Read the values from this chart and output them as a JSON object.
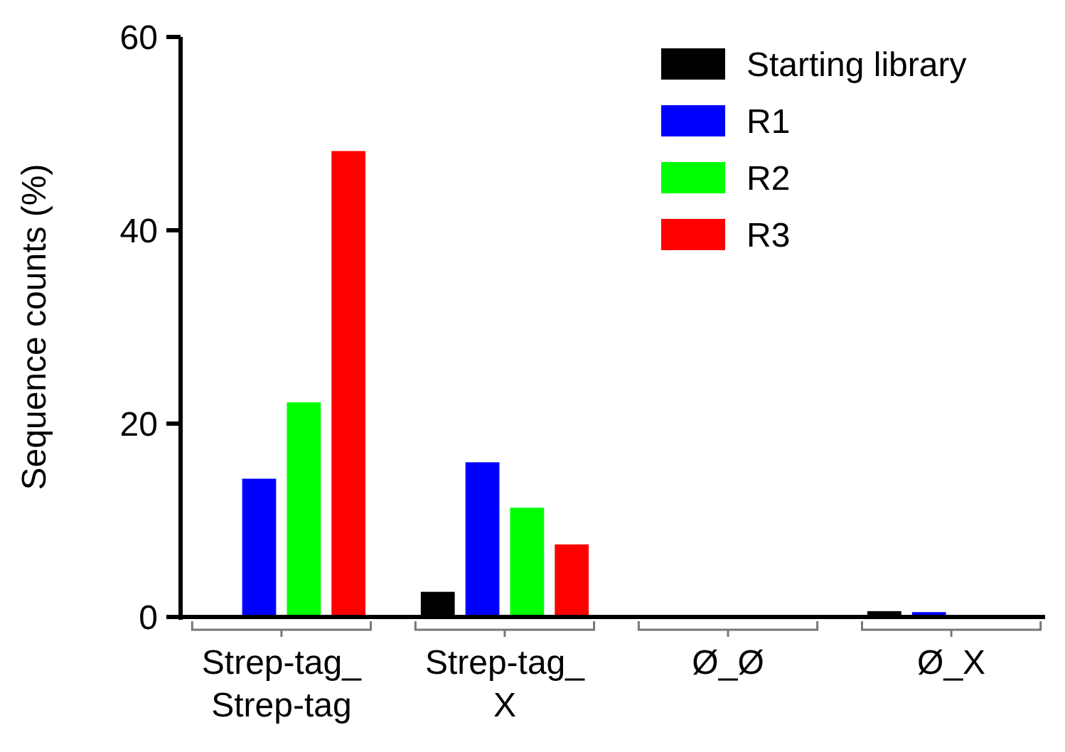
{
  "chart_data": {
    "type": "bar",
    "ylabel": "Sequence counts (%)",
    "categories": [
      "Strep-tag_ Strep-tag",
      "Strep-tag_ X",
      "Ø_Ø",
      "Ø_X"
    ],
    "series": [
      {
        "name": "Starting library",
        "color": "#000000",
        "values": [
          0,
          2.6,
          0,
          0.6
        ]
      },
      {
        "name": "R1",
        "color": "#0000ff",
        "values": [
          14.3,
          16.0,
          0,
          0.5
        ]
      },
      {
        "name": "R2",
        "color": "#00ff00",
        "values": [
          22.2,
          11.3,
          0,
          0
        ]
      },
      {
        "name": "R3",
        "color": "#ff0000",
        "values": [
          48.2,
          7.5,
          0,
          0
        ]
      }
    ],
    "ylim": [
      0,
      60
    ],
    "yticks": [
      0,
      20,
      40,
      60
    ],
    "grid": false,
    "legend": "top right"
  }
}
